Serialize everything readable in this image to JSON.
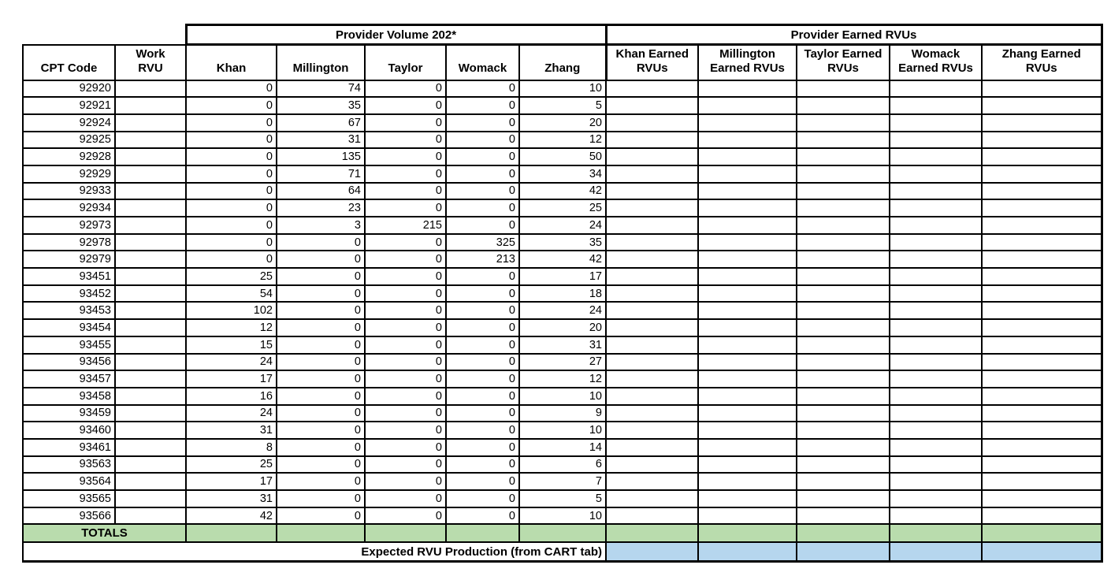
{
  "colors": {
    "green": "#b9dcad",
    "blue": "#b6d6ee",
    "border": "#000000"
  },
  "header": {
    "volume_group": "Provider Volume 202*",
    "earned_group": "Provider Earned RVUs",
    "columns": [
      "CPT Code",
      "Work RVU",
      "Khan",
      "Millington",
      "Taylor",
      "Womack",
      "Zhang",
      "Khan Earned RVUs",
      "Millington Earned RVUs",
      "Taylor Earned RVUs",
      "Womack Earned RVUs",
      "Zhang Earned RVUs"
    ]
  },
  "rows": [
    {
      "cpt": "92920",
      "work_rvu": "",
      "volumes": [
        "0",
        "74",
        "0",
        "0",
        "10"
      ],
      "earned": [
        "",
        "",
        "",
        "",
        ""
      ]
    },
    {
      "cpt": "92921",
      "work_rvu": "",
      "volumes": [
        "0",
        "35",
        "0",
        "0",
        "5"
      ],
      "earned": [
        "",
        "",
        "",
        "",
        ""
      ]
    },
    {
      "cpt": "92924",
      "work_rvu": "",
      "volumes": [
        "0",
        "67",
        "0",
        "0",
        "20"
      ],
      "earned": [
        "",
        "",
        "",
        "",
        ""
      ]
    },
    {
      "cpt": "92925",
      "work_rvu": "",
      "volumes": [
        "0",
        "31",
        "0",
        "0",
        "12"
      ],
      "earned": [
        "",
        "",
        "",
        "",
        ""
      ]
    },
    {
      "cpt": "92928",
      "work_rvu": "",
      "volumes": [
        "0",
        "135",
        "0",
        "0",
        "50"
      ],
      "earned": [
        "",
        "",
        "",
        "",
        ""
      ]
    },
    {
      "cpt": "92929",
      "work_rvu": "",
      "volumes": [
        "0",
        "71",
        "0",
        "0",
        "34"
      ],
      "earned": [
        "",
        "",
        "",
        "",
        ""
      ]
    },
    {
      "cpt": "92933",
      "work_rvu": "",
      "volumes": [
        "0",
        "64",
        "0",
        "0",
        "42"
      ],
      "earned": [
        "",
        "",
        "",
        "",
        ""
      ]
    },
    {
      "cpt": "92934",
      "work_rvu": "",
      "volumes": [
        "0",
        "23",
        "0",
        "0",
        "25"
      ],
      "earned": [
        "",
        "",
        "",
        "",
        ""
      ]
    },
    {
      "cpt": "92973",
      "work_rvu": "",
      "volumes": [
        "0",
        "3",
        "215",
        "0",
        "24"
      ],
      "earned": [
        "",
        "",
        "",
        "",
        ""
      ]
    },
    {
      "cpt": "92978",
      "work_rvu": "",
      "volumes": [
        "0",
        "0",
        "0",
        "325",
        "35"
      ],
      "earned": [
        "",
        "",
        "",
        "",
        ""
      ]
    },
    {
      "cpt": "92979",
      "work_rvu": "",
      "volumes": [
        "0",
        "0",
        "0",
        "213",
        "42"
      ],
      "earned": [
        "",
        "",
        "",
        "",
        ""
      ]
    },
    {
      "cpt": "93451",
      "work_rvu": "",
      "volumes": [
        "25",
        "0",
        "0",
        "0",
        "17"
      ],
      "earned": [
        "",
        "",
        "",
        "",
        ""
      ]
    },
    {
      "cpt": "93452",
      "work_rvu": "",
      "volumes": [
        "54",
        "0",
        "0",
        "0",
        "18"
      ],
      "earned": [
        "",
        "",
        "",
        "",
        ""
      ]
    },
    {
      "cpt": "93453",
      "work_rvu": "",
      "volumes": [
        "102",
        "0",
        "0",
        "0",
        "24"
      ],
      "earned": [
        "",
        "",
        "",
        "",
        ""
      ]
    },
    {
      "cpt": "93454",
      "work_rvu": "",
      "volumes": [
        "12",
        "0",
        "0",
        "0",
        "20"
      ],
      "earned": [
        "",
        "",
        "",
        "",
        ""
      ]
    },
    {
      "cpt": "93455",
      "work_rvu": "",
      "volumes": [
        "15",
        "0",
        "0",
        "0",
        "31"
      ],
      "earned": [
        "",
        "",
        "",
        "",
        ""
      ]
    },
    {
      "cpt": "93456",
      "work_rvu": "",
      "volumes": [
        "24",
        "0",
        "0",
        "0",
        "27"
      ],
      "earned": [
        "",
        "",
        "",
        "",
        ""
      ]
    },
    {
      "cpt": "93457",
      "work_rvu": "",
      "volumes": [
        "17",
        "0",
        "0",
        "0",
        "12"
      ],
      "earned": [
        "",
        "",
        "",
        "",
        ""
      ]
    },
    {
      "cpt": "93458",
      "work_rvu": "",
      "volumes": [
        "16",
        "0",
        "0",
        "0",
        "10"
      ],
      "earned": [
        "",
        "",
        "",
        "",
        ""
      ]
    },
    {
      "cpt": "93459",
      "work_rvu": "",
      "volumes": [
        "24",
        "0",
        "0",
        "0",
        "9"
      ],
      "earned": [
        "",
        "",
        "",
        "",
        ""
      ]
    },
    {
      "cpt": "93460",
      "work_rvu": "",
      "volumes": [
        "31",
        "0",
        "0",
        "0",
        "10"
      ],
      "earned": [
        "",
        "",
        "",
        "",
        ""
      ]
    },
    {
      "cpt": "93461",
      "work_rvu": "",
      "volumes": [
        "8",
        "0",
        "0",
        "0",
        "14"
      ],
      "earned": [
        "",
        "",
        "",
        "",
        ""
      ]
    },
    {
      "cpt": "93563",
      "work_rvu": "",
      "volumes": [
        "25",
        "0",
        "0",
        "0",
        "6"
      ],
      "earned": [
        "",
        "",
        "",
        "",
        ""
      ]
    },
    {
      "cpt": "93564",
      "work_rvu": "",
      "volumes": [
        "17",
        "0",
        "0",
        "0",
        "7"
      ],
      "earned": [
        "",
        "",
        "",
        "",
        ""
      ]
    },
    {
      "cpt": "93565",
      "work_rvu": "",
      "volumes": [
        "31",
        "0",
        "0",
        "0",
        "5"
      ],
      "earned": [
        "",
        "",
        "",
        "",
        ""
      ]
    },
    {
      "cpt": "93566",
      "work_rvu": "",
      "volumes": [
        "42",
        "0",
        "0",
        "0",
        "10"
      ],
      "earned": [
        "",
        "",
        "",
        "",
        ""
      ]
    }
  ],
  "footer": {
    "totals_label": "TOTALS",
    "expected_label": "Expected RVU Production (from CART tab)"
  }
}
